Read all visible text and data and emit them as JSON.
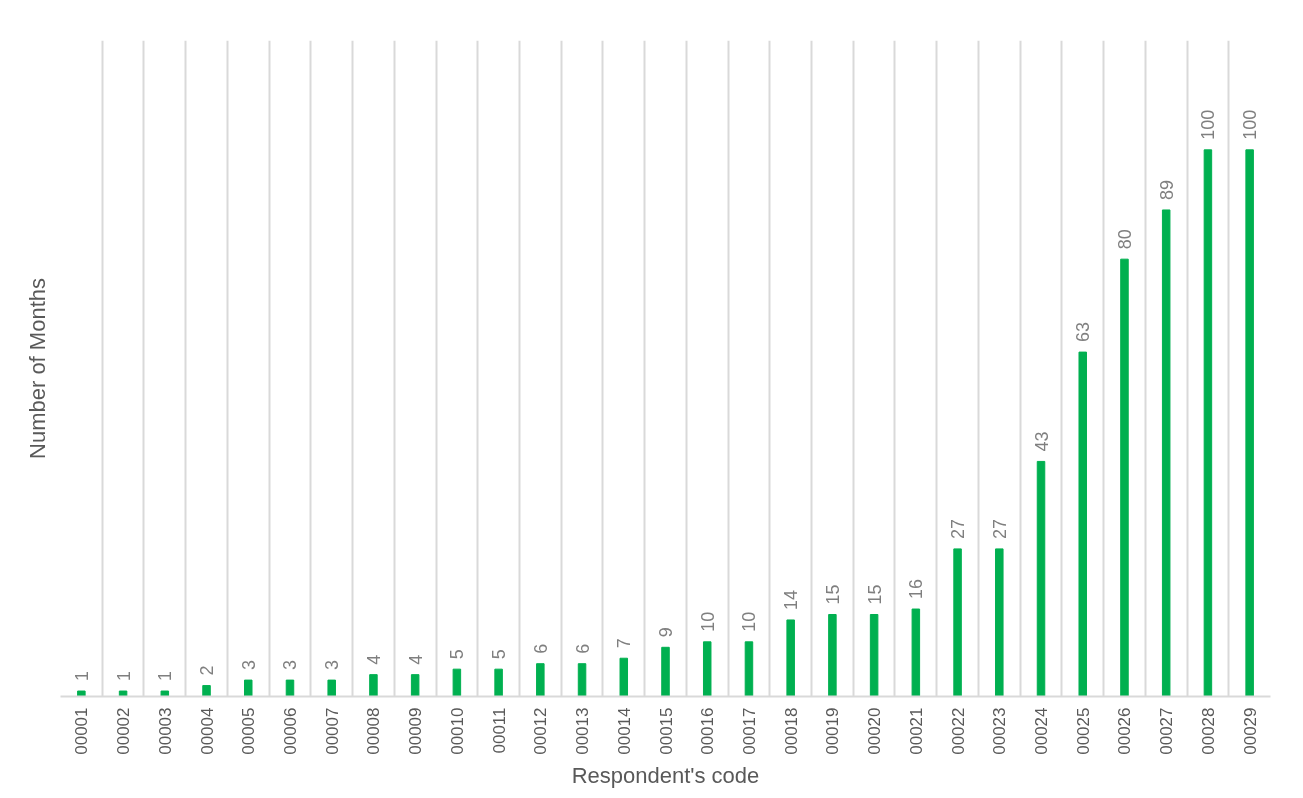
{
  "chart_data": {
    "type": "bar",
    "xlabel": "Respondent's code",
    "ylabel": "Number of Months",
    "categories": [
      "00001",
      "00002",
      "00003",
      "00004",
      "00005",
      "00006",
      "00007",
      "00008",
      "00009",
      "00010",
      "00011",
      "00012",
      "00013",
      "00014",
      "00015",
      "00016",
      "00017",
      "00018",
      "00019",
      "00020",
      "00021",
      "00022",
      "00023",
      "00024",
      "00025",
      "00026",
      "00027",
      "00028",
      "00029"
    ],
    "values": [
      1,
      1,
      1,
      2,
      3,
      3,
      3,
      4,
      4,
      5,
      5,
      6,
      6,
      7,
      9,
      10,
      10,
      14,
      15,
      15,
      16,
      27,
      27,
      43,
      63,
      80,
      89,
      100,
      100
    ],
    "color": "#00b050",
    "data_labels": true,
    "grid": "x",
    "tick_labels": "x"
  }
}
